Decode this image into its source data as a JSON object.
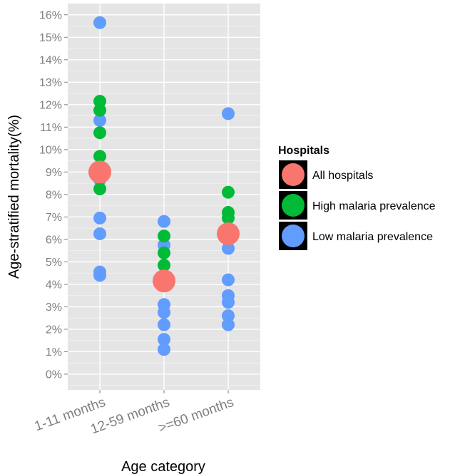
{
  "chart_data": {
    "type": "scatter",
    "xlabel": "Age category",
    "ylabel": "Age-stratified mortality(%)",
    "categories": [
      "1-11 months",
      "12-59 months",
      ">=60 months"
    ],
    "ylim": [
      -0.7,
      16.5
    ],
    "yticks": [
      "0%",
      "1%",
      "2%",
      "3%",
      "4%",
      "5%",
      "6%",
      "7%",
      "8%",
      "9%",
      "10%",
      "11%",
      "12%",
      "13%",
      "14%",
      "15%",
      "16%"
    ],
    "grid": true,
    "legend": {
      "title": "Hospitals",
      "position": "right",
      "entries": [
        "All hospitals",
        "High malaria prevalence",
        "Low malaria prevalence"
      ]
    },
    "series": [
      {
        "name": "All hospitals",
        "color": "#F8766D",
        "size": "large",
        "points": [
          {
            "x": "1-11 months",
            "y": 9.0
          },
          {
            "x": "12-59 months",
            "y": 4.15
          },
          {
            "x": ">=60 months",
            "y": 6.25
          }
        ]
      },
      {
        "name": "High malaria prevalence",
        "color": "#00BA38",
        "size": "small",
        "points": [
          {
            "x": "1-11 months",
            "y": 12.15
          },
          {
            "x": "1-11 months",
            "y": 11.75
          },
          {
            "x": "1-11 months",
            "y": 10.75
          },
          {
            "x": "1-11 months",
            "y": 9.7
          },
          {
            "x": "1-11 months",
            "y": 8.25
          },
          {
            "x": "12-59 months",
            "y": 6.15
          },
          {
            "x": "12-59 months",
            "y": 5.4
          },
          {
            "x": "12-59 months",
            "y": 4.85
          },
          {
            "x": "12-59 months",
            "y": 4.4
          },
          {
            "x": ">=60 months",
            "y": 8.1
          },
          {
            "x": ">=60 months",
            "y": 7.2
          },
          {
            "x": ">=60 months",
            "y": 6.95
          },
          {
            "x": ">=60 months",
            "y": 6.05
          }
        ]
      },
      {
        "name": "Low malaria prevalence",
        "color": "#619CFF",
        "size": "small",
        "points": [
          {
            "x": "1-11 months",
            "y": 15.65
          },
          {
            "x": "1-11 months",
            "y": 11.3
          },
          {
            "x": "1-11 months",
            "y": 8.65
          },
          {
            "x": "1-11 months",
            "y": 6.95
          },
          {
            "x": "1-11 months",
            "y": 6.25
          },
          {
            "x": "1-11 months",
            "y": 4.55
          },
          {
            "x": "1-11 months",
            "y": 4.4
          },
          {
            "x": "12-59 months",
            "y": 6.8
          },
          {
            "x": "12-59 months",
            "y": 5.75
          },
          {
            "x": "12-59 months",
            "y": 3.1
          },
          {
            "x": "12-59 months",
            "y": 2.75
          },
          {
            "x": "12-59 months",
            "y": 2.2
          },
          {
            "x": "12-59 months",
            "y": 1.55
          },
          {
            "x": "12-59 months",
            "y": 1.1
          },
          {
            "x": ">=60 months",
            "y": 11.6
          },
          {
            "x": ">=60 months",
            "y": 5.6
          },
          {
            "x": ">=60 months",
            "y": 4.2
          },
          {
            "x": ">=60 months",
            "y": 3.5
          },
          {
            "x": ">=60 months",
            "y": 3.2
          },
          {
            "x": ">=60 months",
            "y": 2.6
          },
          {
            "x": ">=60 months",
            "y": 2.2
          }
        ]
      }
    ]
  }
}
